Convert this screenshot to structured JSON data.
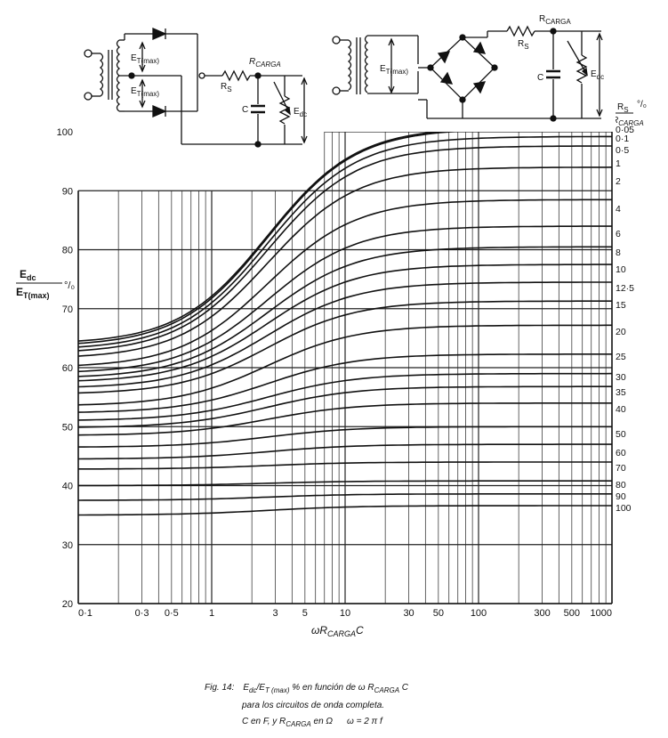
{
  "chart_data": {
    "type": "line",
    "x_scale": "log",
    "xlim": [
      0.1,
      1000
    ],
    "ylim": [
      20,
      100
    ],
    "xlabel": "ωR",
    "xlabel_sub": "CARGA",
    "xlabel_tail": "C",
    "ylabel_num": "E",
    "ylabel_num_sub": "dc",
    "ylabel_den": "E",
    "ylabel_den_sub": "T(max)",
    "ylabel_unit": "°/₀",
    "x_tick_labels": [
      "0·1",
      "0·3",
      "0·5",
      "1",
      "3",
      "5",
      "10",
      "30",
      "50",
      "100",
      "300",
      "500",
      "1000"
    ],
    "x_tick_values": [
      0.1,
      0.3,
      0.5,
      1,
      3,
      5,
      10,
      30,
      50,
      100,
      300,
      500,
      1000
    ],
    "y_tick_labels": [
      "20",
      "30",
      "40",
      "50",
      "60",
      "70",
      "80",
      "90",
      "100"
    ],
    "y_tick_values": [
      20,
      30,
      40,
      50,
      60,
      70,
      80,
      90,
      100
    ],
    "grid": true,
    "series_label_header": "R",
    "series_label_header_sub": "S",
    "series_label_unit": "°/₀",
    "series_label_header2": "R",
    "series_label_header2_sub": "CARGA",
    "series": [
      {
        "name": "0·05",
        "rs_ratio": 0.05,
        "low": 64.0,
        "high": 100.8
      },
      {
        "name": "0·1",
        "rs_ratio": 0.1,
        "low": 63.6,
        "high": 100.6
      },
      {
        "name": "0·5",
        "rs_ratio": 0.5,
        "low": 63.0,
        "high": 99.2
      },
      {
        "name": "1",
        "rs_ratio": 1,
        "low": 62.4,
        "high": 97.6
      },
      {
        "name": "2",
        "rs_ratio": 2,
        "low": 61.5,
        "high": 94.0
      },
      {
        "name": "4",
        "rs_ratio": 4,
        "low": 60.0,
        "high": 88.5
      },
      {
        "name": "6",
        "rs_ratio": 6,
        "low": 59.0,
        "high": 84.0
      },
      {
        "name": "8",
        "rs_ratio": 8,
        "low": 58.2,
        "high": 80.5
      },
      {
        "name": "10",
        "rs_ratio": 10,
        "low": 57.5,
        "high": 77.5
      },
      {
        "name": "12·5",
        "rs_ratio": 12.5,
        "low": 56.5,
        "high": 74.5
      },
      {
        "name": "15",
        "rs_ratio": 15,
        "low": 55.5,
        "high": 71.3
      },
      {
        "name": "20",
        "rs_ratio": 20,
        "low": 53.5,
        "high": 67.2
      },
      {
        "name": "25",
        "rs_ratio": 25,
        "low": 52.3,
        "high": 62.3
      },
      {
        "name": "30",
        "rs_ratio": 30,
        "low": 51.0,
        "high": 59.0
      },
      {
        "name": "35",
        "rs_ratio": 35,
        "low": 49.8,
        "high": 56.8
      },
      {
        "name": "40",
        "rs_ratio": 40,
        "low": 48.5,
        "high": 54.0
      },
      {
        "name": "50",
        "rs_ratio": 50,
        "low": 46.5,
        "high": 50.0
      },
      {
        "name": "60",
        "rs_ratio": 60,
        "low": 44.5,
        "high": 47.0
      },
      {
        "name": "70",
        "rs_ratio": 70,
        "low": 42.8,
        "high": 44.0
      },
      {
        "name": "80",
        "rs_ratio": 80,
        "low": 40.0,
        "high": 40.8
      },
      {
        "name": "90",
        "rs_ratio": 90,
        "low": 37.5,
        "high": 38.6
      },
      {
        "name": "100",
        "rs_ratio": 100,
        "low": 35.0,
        "high": 36.6
      }
    ]
  },
  "circuit_left": {
    "et_top": "E",
    "et_top_sub": "T(max)",
    "et_bottom": "E",
    "et_bottom_sub": "T(max)",
    "rs": "R",
    "rs_sub": "S",
    "rcarga": "R",
    "rcarga_sub": "CARGA",
    "cap": "C",
    "edc": "E",
    "edc_sub": "dc"
  },
  "circuit_right": {
    "et": "E",
    "et_sub": "T(max)",
    "rs": "R",
    "rs_sub": "S",
    "rcarga": "R",
    "rcarga_sub": "CARGA",
    "cap": "C",
    "edc": "E",
    "edc_sub": "dc"
  },
  "caption": {
    "line1_prefix": "Fig. 14:",
    "line1_a": "E",
    "line1_a_sub": "dc",
    "line1_b": "/E",
    "line1_b_sub": "T (max)",
    "line1_c": " % en función de ω R",
    "line1_c_sub": "CARGA",
    "line1_d": " C",
    "line2": "para los circuitos de onda completa.",
    "line3_a": "C en F, y R",
    "line3_a_sub": "CARGA",
    "line3_b": " en Ω",
    "line3_c": "ω = 2 π f"
  },
  "colors": {
    "ink": "#111111",
    "grid": "#222222",
    "background": "#ffffff"
  }
}
